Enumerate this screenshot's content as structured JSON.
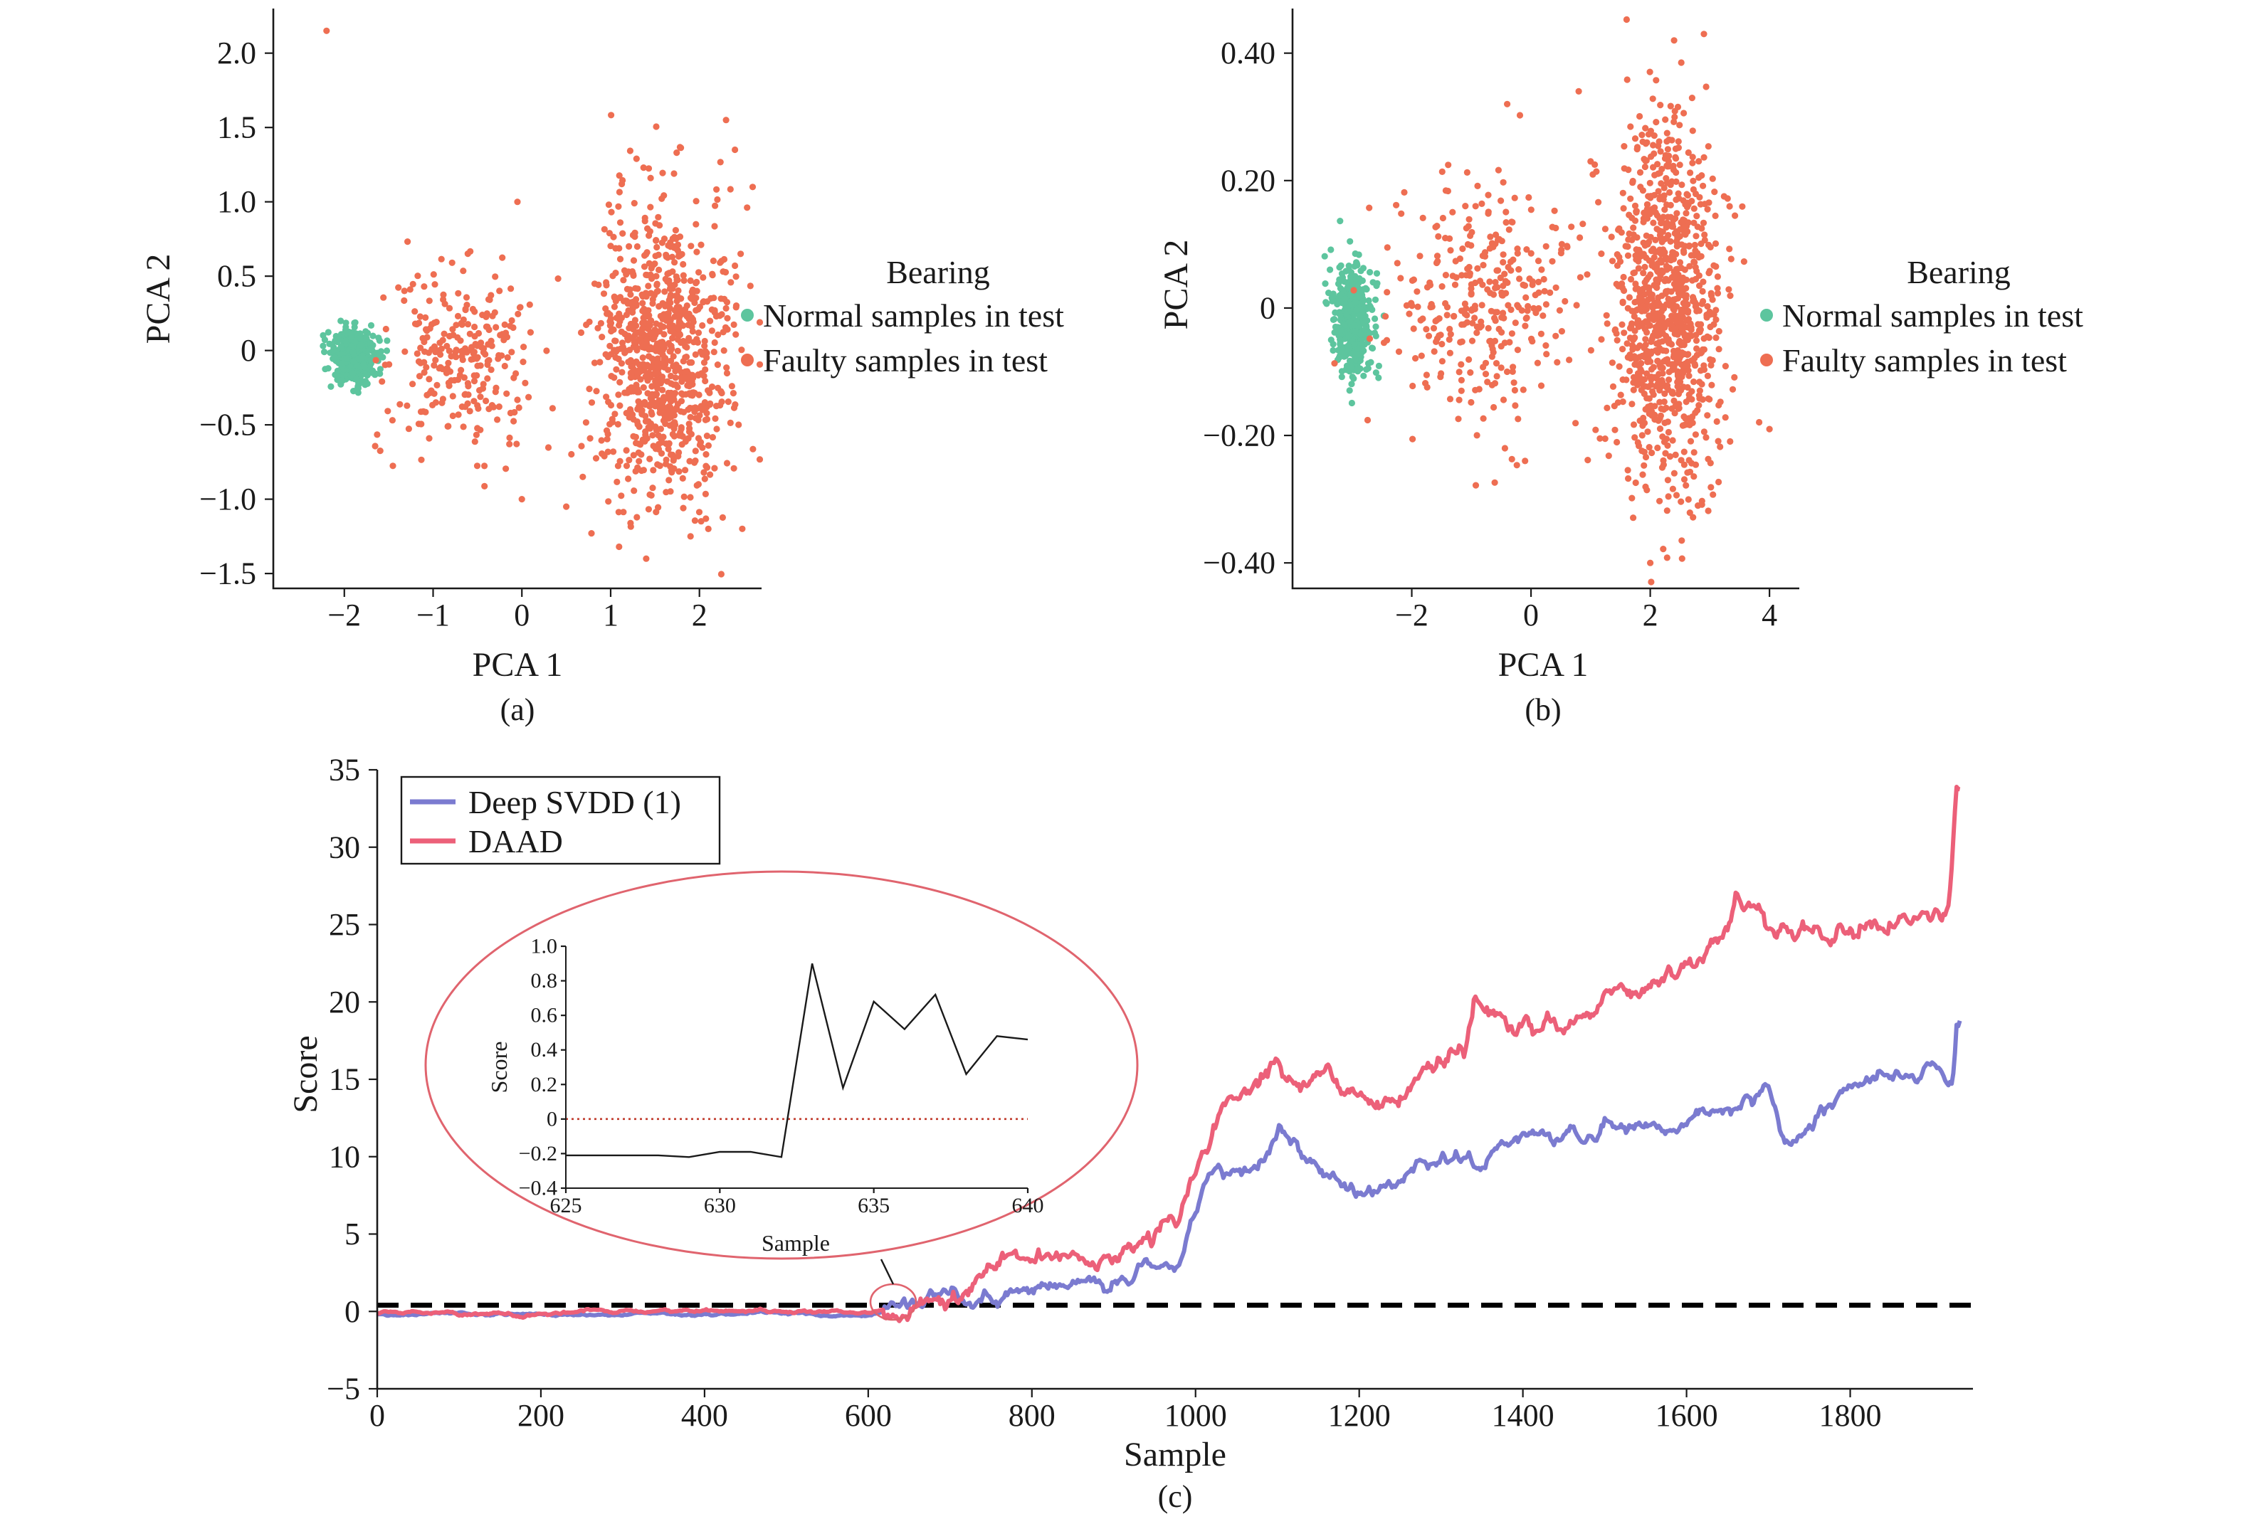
{
  "chart_data": [
    {
      "type": "scatter",
      "caption": "(a)",
      "xlabel": "PCA 1",
      "ylabel": "PCA 2",
      "xlim": [
        -2.8,
        2.7
      ],
      "ylim": [
        -1.6,
        2.3
      ],
      "xticks": [
        -2,
        -1,
        0,
        1,
        2
      ],
      "xtick_labels": [
        "−2",
        "−1",
        "0",
        "1",
        "2"
      ],
      "yticks": [
        -1.5,
        -1.0,
        -0.5,
        0,
        0.5,
        1.0,
        1.5,
        2.0
      ],
      "ytick_labels": [
        "−1.5",
        "−1.0",
        "−0.5",
        "0",
        "0.5",
        "1.0",
        "1.5",
        "2.0"
      ],
      "legend": {
        "title": "Bearing",
        "position": "right, outside",
        "entries": [
          {
            "label": "Normal samples in test",
            "color": "#5dc59e"
          },
          {
            "label": "Faulty samples in test",
            "color": "#ee6e52"
          }
        ]
      },
      "series": [
        {
          "name": "Normal samples in test",
          "color": "#5dc59e",
          "clusters": [
            {
              "cx": -1.9,
              "cy": -0.05,
              "sx": 0.13,
              "sy": 0.09,
              "n": 420
            }
          ],
          "points": []
        },
        {
          "name": "Faulty samples in test",
          "color": "#ee6e52",
          "clusters": [
            {
              "cx": -0.7,
              "cy": -0.05,
              "sx": 0.42,
              "sy": 0.3,
              "n": 260
            },
            {
              "cx": 1.6,
              "cy": -0.05,
              "sx": 0.38,
              "sy": 0.5,
              "n": 900
            }
          ],
          "points": [
            [
              -2.2,
              2.15
            ],
            [
              2.3,
              1.55
            ],
            [
              2.4,
              1.35
            ],
            [
              -0.05,
              1.0
            ],
            [
              0.0,
              -1.0
            ],
            [
              1.9,
              -1.25
            ],
            [
              1.4,
              -1.4
            ],
            [
              0.5,
              -1.05
            ],
            [
              2.6,
              1.1
            ],
            [
              2.1,
              -1.2
            ]
          ]
        }
      ]
    },
    {
      "type": "scatter",
      "caption": "(b)",
      "xlabel": "PCA 1",
      "ylabel": "PCA 2",
      "xlim": [
        -4.0,
        4.5
      ],
      "ylim": [
        -0.44,
        0.47
      ],
      "xticks": [
        -2,
        0,
        2,
        4
      ],
      "xtick_labels": [
        "−2",
        "0",
        "2",
        "4"
      ],
      "yticks": [
        -0.4,
        -0.2,
        0,
        0.2,
        0.4
      ],
      "ytick_labels": [
        "−0.40",
        "−0.20",
        "0",
        "0.20",
        "0.40"
      ],
      "legend": {
        "title": "Bearing",
        "position": "right, outside",
        "entries": [
          {
            "label": "Normal samples in test",
            "color": "#5dc59e"
          },
          {
            "label": "Faulty samples in test",
            "color": "#ee6e52"
          }
        ]
      },
      "series": [
        {
          "name": "Normal samples in test",
          "color": "#5dc59e",
          "clusters": [
            {
              "cx": -3.0,
              "cy": -0.02,
              "sx": 0.17,
              "sy": 0.045,
              "n": 420
            }
          ],
          "points": []
        },
        {
          "name": "Faulty samples in test",
          "color": "#ee6e52",
          "clusters": [
            {
              "cx": -0.7,
              "cy": 0.0,
              "sx": 0.75,
              "sy": 0.09,
              "n": 320
            },
            {
              "cx": 2.3,
              "cy": 0.0,
              "sx": 0.45,
              "sy": 0.14,
              "n": 950
            }
          ],
          "points": [
            [
              0.8,
              0.34
            ],
            [
              -0.4,
              0.32
            ],
            [
              2.9,
              0.43
            ],
            [
              2.0,
              -0.4
            ],
            [
              -0.1,
              -0.24
            ],
            [
              4.0,
              -0.19
            ],
            [
              1.0,
              0.23
            ],
            [
              2.4,
              0.42
            ]
          ]
        }
      ]
    },
    {
      "type": "line",
      "caption": "(c)",
      "xlabel": "Sample",
      "ylabel": "Score",
      "xlim": [
        0,
        1950
      ],
      "ylim": [
        -5,
        35
      ],
      "xticks": [
        0,
        200,
        400,
        600,
        800,
        1000,
        1200,
        1400,
        1600,
        1800
      ],
      "xtick_labels": [
        "0",
        "200",
        "400",
        "600",
        "800",
        "1000",
        "1200",
        "1400",
        "1600",
        "1800"
      ],
      "yticks": [
        -5,
        0,
        5,
        10,
        15,
        20,
        25,
        30,
        35
      ],
      "ytick_labels": [
        "−5",
        "0",
        "5",
        "10",
        "15",
        "20",
        "25",
        "30",
        "35"
      ],
      "legend": {
        "position": "upper-left",
        "entries": [
          {
            "label": "Deep SVDD (1)",
            "color": "#7b7bd0"
          },
          {
            "label": "DAAD",
            "color": "#ec6079"
          }
        ]
      },
      "threshold": {
        "y": 0.4,
        "color": "#000000",
        "style": "dashed"
      },
      "series": [
        {
          "name": "Deep SVDD (1)",
          "color": "#7b7bd0",
          "keypoints": [
            [
              0,
              -0.2
            ],
            [
              600,
              -0.2
            ],
            [
              640,
              0.3
            ],
            [
              700,
              0.5
            ],
            [
              760,
              1.0
            ],
            [
              800,
              1.4
            ],
            [
              900,
              2.0
            ],
            [
              980,
              3.5
            ],
            [
              1000,
              6.5
            ],
            [
              1020,
              8.5
            ],
            [
              1080,
              9.0
            ],
            [
              1100,
              10.5
            ],
            [
              1150,
              9.5
            ],
            [
              1200,
              8.5
            ],
            [
              1300,
              10.0
            ],
            [
              1400,
              11.0
            ],
            [
              1500,
              12.0
            ],
            [
              1600,
              13.0
            ],
            [
              1700,
              14.5
            ],
            [
              1720,
              11.5
            ],
            [
              1800,
              14.0
            ],
            [
              1900,
              16.0
            ],
            [
              1925,
              15.5
            ],
            [
              1930,
              19.5
            ],
            [
              1935,
              19.5
            ]
          ],
          "noise": 0.55
        },
        {
          "name": "DAAD",
          "color": "#ec6079",
          "keypoints": [
            [
              0,
              -0.1
            ],
            [
              600,
              0.0
            ],
            [
              640,
              0.4
            ],
            [
              700,
              0.6
            ],
            [
              760,
              1.5
            ],
            [
              800,
              2.5
            ],
            [
              900,
              3.5
            ],
            [
              980,
              5.5
            ],
            [
              1000,
              9.0
            ],
            [
              1030,
              12.0
            ],
            [
              1080,
              14.0
            ],
            [
              1100,
              15.5
            ],
            [
              1130,
              14.0
            ],
            [
              1200,
              14.5
            ],
            [
              1240,
              13.8
            ],
            [
              1300,
              17.0
            ],
            [
              1330,
              18.0
            ],
            [
              1340,
              20.0
            ],
            [
              1400,
              19.5
            ],
            [
              1450,
              19.0
            ],
            [
              1500,
              20.5
            ],
            [
              1600,
              22.0
            ],
            [
              1650,
              24.0
            ],
            [
              1660,
              26.0
            ],
            [
              1700,
              24.0
            ],
            [
              1800,
              25.0
            ],
            [
              1900,
              26.0
            ],
            [
              1920,
              27.0
            ],
            [
              1925,
              30.0
            ],
            [
              1930,
              34.5
            ],
            [
              1935,
              34.5
            ]
          ],
          "noise": 0.65
        }
      ],
      "inset": {
        "type": "line",
        "xlabel": "Sample",
        "ylabel": "Score",
        "xlim": [
          625,
          640
        ],
        "ylim": [
          -0.4,
          1.0
        ],
        "xticks": [
          625,
          630,
          635,
          640
        ],
        "xtick_labels": [
          "625",
          "630",
          "635",
          "640"
        ],
        "yticks": [
          -0.4,
          -0.2,
          0,
          0.2,
          0.4,
          0.6,
          0.8,
          1.0
        ],
        "ytick_labels": [
          "−0.4",
          "−0.2",
          "0",
          "0.2",
          "0.4",
          "0.6",
          "0.8",
          "1.0"
        ],
        "x": [
          625,
          626,
          627,
          628,
          629,
          630,
          631,
          632,
          633,
          634,
          635,
          636,
          637,
          638,
          639,
          640
        ],
        "y": [
          -0.21,
          -0.21,
          -0.21,
          -0.21,
          -0.22,
          -0.19,
          -0.19,
          -0.22,
          0.9,
          0.18,
          0.68,
          0.52,
          0.72,
          0.26,
          0.48,
          0.46
        ],
        "threshold": {
          "y": 0,
          "color": "#c0392b",
          "style": "dotted"
        },
        "line_color": "#1a1a1a",
        "zoom_region": {
          "x": [
            625,
            640
          ],
          "y": [
            -0.4,
            1.0
          ]
        }
      }
    }
  ]
}
